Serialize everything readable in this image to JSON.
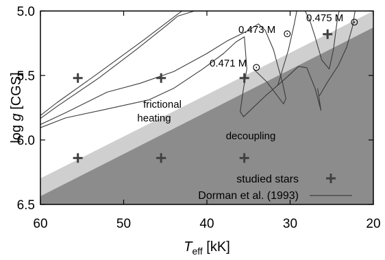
{
  "chart_data": {
    "type": "scatter",
    "xlabel": "T_eff [kK]",
    "xlabel_main": "T",
    "xlabel_sub": "eff",
    "xlabel_unit": " [kK]",
    "ylabel": "log g [CGS]",
    "ylabel_pre": "log ",
    "ylabel_var": "g",
    "ylabel_unit": " [CGS]",
    "xlim": [
      60,
      20
    ],
    "ylim": [
      6.5,
      5.0
    ],
    "x_ticks": [
      60,
      50,
      40,
      30,
      20
    ],
    "x_tick_labels": [
      "60",
      "50",
      "40",
      "30",
      "20"
    ],
    "y_ticks": [
      5.0,
      5.5,
      6.0,
      6.5
    ],
    "y_tick_labels": [
      "5.0",
      "5.5",
      "6.0",
      "6.5"
    ],
    "regions": [
      {
        "name": "frictional heating",
        "color": "#cfcfcf"
      },
      {
        "name": "decoupling",
        "color": "#8c8c8c"
      }
    ],
    "region_labels": {
      "frictional_line1": "frictional",
      "frictional_line2": "heating",
      "decoupling": "decoupling"
    },
    "track_labels": [
      "0.471 M",
      "0.473 M",
      "0.475 M"
    ],
    "sun_symbol": "⊙",
    "series": [
      {
        "name": "studied stars",
        "marker": "plus",
        "color": "#404040",
        "points": [
          {
            "teff": 55.5,
            "logg": 5.52
          },
          {
            "teff": 45.5,
            "logg": 5.52
          },
          {
            "teff": 35.5,
            "logg": 5.52
          },
          {
            "teff": 25.5,
            "logg": 5.18
          },
          {
            "teff": 55.5,
            "logg": 6.14
          },
          {
            "teff": 45.5,
            "logg": 6.14
          },
          {
            "teff": 35.5,
            "logg": 6.14
          }
        ]
      },
      {
        "name": "Dorman et al. (1993)",
        "marker": "line",
        "color": "#404040",
        "tracks": [
          [
            [
              61,
              5.86
            ],
            [
              58,
              5.71
            ],
            [
              53,
              5.48
            ],
            [
              47.5,
              5.22
            ],
            [
              43,
              5.0
            ]
          ],
          [
            [
              61,
              5.88
            ],
            [
              58,
              5.74
            ],
            [
              53,
              5.52
            ],
            [
              48.5,
              5.3
            ],
            [
              45,
              5.12
            ],
            [
              43.5,
              5.04
            ],
            [
              41.5,
              5.0
            ]
          ],
          [
            [
              61,
              5.91
            ],
            [
              57,
              5.79
            ],
            [
              52,
              5.63
            ],
            [
              48,
              5.56
            ],
            [
              44,
              5.47
            ],
            [
              40,
              5.33
            ],
            [
              37.5,
              5.23
            ],
            [
              35,
              5.15
            ],
            [
              33.8,
              5.1
            ],
            [
              33,
              5.15
            ],
            [
              32,
              5.3
            ],
            [
              31.5,
              5.42
            ],
            [
              30.9,
              5.56
            ],
            [
              30.5,
              5.68
            ],
            [
              30.8,
              5.72
            ],
            [
              32.8,
              5.55
            ],
            [
              34.4,
              5.45
            ]
          ],
          [
            [
              61,
              5.93
            ],
            [
              57,
              5.83
            ],
            [
              52,
              5.76
            ],
            [
              47,
              5.69
            ],
            [
              44,
              5.6
            ],
            [
              40.5,
              5.45
            ],
            [
              38,
              5.33
            ],
            [
              36.5,
              5.24
            ],
            [
              35.5,
              5.2
            ],
            [
              35.2,
              5.45
            ],
            [
              35.6,
              5.6
            ],
            [
              36,
              5.78
            ],
            [
              35.6,
              5.82
            ],
            [
              33,
              5.66
            ],
            [
              30.5,
              5.52
            ],
            [
              29,
              5.43
            ],
            [
              28,
              5.44
            ],
            [
              27,
              5.6
            ],
            [
              26.3,
              5.77
            ],
            [
              26.7,
              5.6
            ]
          ],
          [
            [
              31.5,
              5.58
            ],
            [
              30.2,
              5.3
            ],
            [
              29.5,
              5.1
            ],
            [
              29.2,
              5.0
            ]
          ],
          [
            [
              26.5,
              5.66
            ],
            [
              25.5,
              5.55
            ],
            [
              24.2,
              5.42
            ],
            [
              23.2,
              5.28
            ],
            [
              22.5,
              5.12
            ],
            [
              22.2,
              5.0
            ]
          ],
          [
            [
              28.2,
              5.0
            ],
            [
              27.6,
              5.08
            ],
            [
              27,
              5.2
            ],
            [
              26.2,
              5.38
            ],
            [
              25.3,
              5.45
            ],
            [
              24.8,
              5.3
            ],
            [
              24.3,
              5.05
            ],
            [
              24.1,
              5.0
            ]
          ]
        ]
      }
    ]
  }
}
